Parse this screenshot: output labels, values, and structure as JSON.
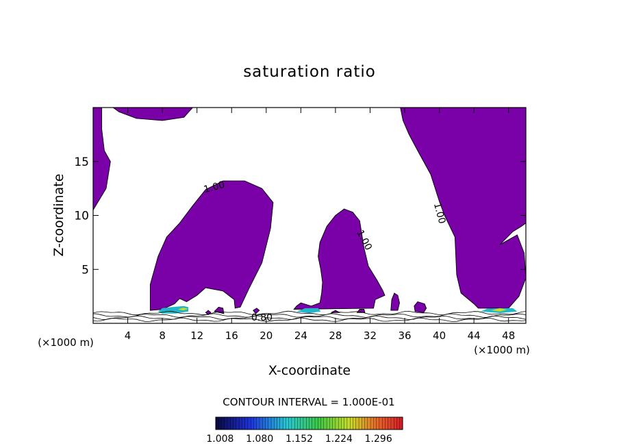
{
  "chart_data": {
    "type": "contour",
    "title": "saturation ratio",
    "xlabel": "X-coordinate",
    "ylabel": "Z-coordinate",
    "x_unit": "(×1000 m)",
    "x_ticks": [
      4,
      8,
      12,
      16,
      20,
      24,
      28,
      32,
      36,
      40,
      44,
      48
    ],
    "y_ticks": [
      5,
      10,
      15
    ],
    "xlim": [
      0,
      50
    ],
    "ylim": [
      0,
      20
    ],
    "contour_interval_text": "CONTOUR INTERVAL = 1.000E-01",
    "contour_labels": [
      {
        "text": "1.00",
        "x": 14.0,
        "z": 12.6,
        "rot": -15
      },
      {
        "text": "1.00",
        "x": 31.3,
        "z": 7.7,
        "rot": 62
      },
      {
        "text": "1.00",
        "x": 40.0,
        "z": 10.2,
        "rot": 75
      },
      {
        "text": "0.80",
        "x": 19.5,
        "z": 0.5,
        "rot": 0
      }
    ],
    "regions": [
      {
        "level": 1.0,
        "points": [
          [
            0,
            20
          ],
          [
            1.0,
            20
          ],
          [
            1.0,
            18.0
          ],
          [
            1.3,
            16.0
          ],
          [
            2.0,
            15.0
          ],
          [
            1.5,
            12.5
          ],
          [
            0,
            10.5
          ]
        ]
      },
      {
        "level": 1.0,
        "points": [
          [
            2.3,
            20
          ],
          [
            11.5,
            20
          ],
          [
            10.5,
            19.1
          ],
          [
            8.0,
            18.8
          ],
          [
            5.0,
            19.0
          ],
          [
            3.0,
            19.6
          ]
        ]
      },
      {
        "level": 1.0,
        "points": [
          [
            35.5,
            20
          ],
          [
            50,
            20
          ],
          [
            50,
            9.3
          ],
          [
            49.5,
            9.0
          ],
          [
            48.5,
            8.5
          ],
          [
            47.0,
            7.3
          ],
          [
            49.0,
            8.2
          ],
          [
            49.8,
            6.5
          ],
          [
            50,
            4.2
          ],
          [
            49.2,
            2.5
          ],
          [
            48.0,
            1.4
          ],
          [
            44.5,
            1.4
          ],
          [
            44.0,
            1.8
          ],
          [
            42.5,
            2.8
          ],
          [
            42.0,
            4.5
          ],
          [
            41.8,
            8.0
          ],
          [
            40.6,
            10.0
          ],
          [
            40.0,
            11.3
          ],
          [
            39.0,
            13.8
          ],
          [
            37.5,
            16.0
          ],
          [
            36.5,
            17.5
          ],
          [
            35.8,
            18.8
          ]
        ]
      },
      {
        "level": 1.0,
        "points": [
          [
            6.6,
            1.2
          ],
          [
            6.6,
            3.6
          ],
          [
            7.5,
            6.2
          ],
          [
            8.5,
            8.0
          ],
          [
            10.0,
            9.3
          ],
          [
            11.5,
            10.9
          ],
          [
            13.0,
            12.4
          ],
          [
            15.0,
            13.2
          ],
          [
            17.5,
            13.2
          ],
          [
            19.5,
            12.5
          ],
          [
            20.8,
            11.2
          ],
          [
            20.5,
            8.8
          ],
          [
            19.5,
            5.6
          ],
          [
            18.0,
            3.2
          ],
          [
            17.0,
            1.5
          ],
          [
            16.4,
            1.4
          ],
          [
            16.3,
            2.2
          ],
          [
            15.0,
            3.0
          ],
          [
            13.0,
            3.3
          ],
          [
            12.0,
            2.6
          ],
          [
            10.8,
            2.0
          ],
          [
            10.0,
            2.3
          ],
          [
            9.4,
            1.8
          ],
          [
            8.0,
            1.3
          ]
        ]
      },
      {
        "level": 1.0,
        "points": [
          [
            23.2,
            1.3
          ],
          [
            23.5,
            1.6
          ],
          [
            24.0,
            1.9
          ],
          [
            25.2,
            1.6
          ],
          [
            26.2,
            1.9
          ],
          [
            26.4,
            2.8
          ],
          [
            26.5,
            3.8
          ],
          [
            26.3,
            5.0
          ],
          [
            26.0,
            6.2
          ],
          [
            26.2,
            7.5
          ],
          [
            27.0,
            9.0
          ],
          [
            28.0,
            10.0
          ],
          [
            29.0,
            10.6
          ],
          [
            30.0,
            10.3
          ],
          [
            30.8,
            9.5
          ],
          [
            31.0,
            8.5
          ],
          [
            31.3,
            7.0
          ],
          [
            31.8,
            5.3
          ],
          [
            32.8,
            4.0
          ],
          [
            33.5,
            3.0
          ],
          [
            33.7,
            2.6
          ],
          [
            32.6,
            2.2
          ],
          [
            32.4,
            1.4
          ]
        ]
      },
      {
        "level": 1.0,
        "points": [
          [
            34.4,
            1.2
          ],
          [
            34.5,
            2.2
          ],
          [
            34.8,
            2.8
          ],
          [
            35.2,
            2.6
          ],
          [
            35.4,
            1.9
          ],
          [
            35.2,
            1.2
          ]
        ]
      },
      {
        "level": 1.0,
        "points": [
          [
            37.2,
            1.1
          ],
          [
            37.1,
            1.6
          ],
          [
            37.5,
            2.0
          ],
          [
            38.3,
            1.8
          ],
          [
            38.5,
            1.4
          ],
          [
            38.2,
            1.0
          ]
        ]
      },
      {
        "level": 1.0,
        "points": [
          [
            14.0,
            1.1
          ],
          [
            14.5,
            1.5
          ],
          [
            15.0,
            1.4
          ],
          [
            15.1,
            0.9
          ]
        ]
      },
      {
        "level": 1.0,
        "points": [
          [
            18.5,
            1.2
          ],
          [
            18.9,
            1.4
          ],
          [
            19.2,
            1.2
          ],
          [
            18.8,
            0.9
          ]
        ]
      },
      {
        "level": 1.0,
        "points": [
          [
            13.0,
            1.0
          ],
          [
            13.3,
            1.2
          ],
          [
            13.6,
            1.0
          ],
          [
            13.3,
            0.8
          ]
        ]
      },
      {
        "level": 1.0,
        "points": [
          [
            30.5,
            1.0
          ],
          [
            30.8,
            1.3
          ],
          [
            31.3,
            1.3
          ],
          [
            31.4,
            1.0
          ]
        ]
      },
      {
        "level": 1.0,
        "points": [
          [
            27.5,
            1.0
          ],
          [
            28.0,
            1.2
          ],
          [
            28.5,
            1.0
          ]
        ]
      },
      {
        "level": 1.2,
        "points": [
          [
            7.5,
            1.1
          ],
          [
            8.0,
            1.4
          ],
          [
            9.0,
            1.5
          ],
          [
            10.5,
            1.6
          ],
          [
            11.0,
            1.5
          ],
          [
            11.0,
            1.1
          ],
          [
            9.5,
            0.9
          ],
          [
            8.0,
            0.9
          ]
        ]
      },
      {
        "level": 1.3,
        "points": [
          [
            9.8,
            1.3
          ],
          [
            10.4,
            1.45
          ],
          [
            11.0,
            1.35
          ],
          [
            10.4,
            1.2
          ]
        ]
      },
      {
        "level": 1.2,
        "points": [
          [
            23.5,
            1.1
          ],
          [
            24.5,
            1.4
          ],
          [
            26.0,
            1.4
          ],
          [
            26.3,
            1.1
          ],
          [
            25.0,
            0.95
          ]
        ]
      },
      {
        "level": 1.2,
        "points": [
          [
            44.8,
            1.1
          ],
          [
            45.5,
            1.35
          ],
          [
            47.0,
            1.4
          ],
          [
            48.5,
            1.4
          ],
          [
            49.0,
            1.1
          ],
          [
            47.0,
            0.95
          ]
        ]
      },
      {
        "level": 1.3,
        "points": [
          [
            46.0,
            1.2
          ],
          [
            47.0,
            1.4
          ],
          [
            47.8,
            1.25
          ],
          [
            47.0,
            1.1
          ]
        ]
      }
    ],
    "colorbar": {
      "range": [
        1.0,
        1.34
      ],
      "tick_labels": [
        "1.008",
        "1.080",
        "1.152",
        "1.224",
        "1.296"
      ]
    }
  }
}
